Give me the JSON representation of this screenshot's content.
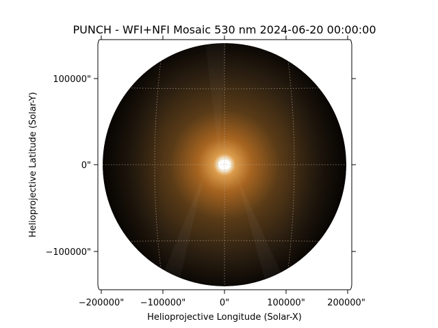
{
  "title": "PUNCH - WFI+NFI Mosaic 530 nm 2024-06-20 00:00:00",
  "xlabel": "Helioprojective Longitude (Solar-X)",
  "ylabel": "Helioprojective Latitude (Solar-Y)",
  "x_ticks": [
    "−200000\"",
    "−100000\"",
    "0\"",
    "100000\"",
    "200000\""
  ],
  "y_ticks": [
    "100000\"",
    "0\"",
    "−100000\""
  ],
  "colors": {
    "background": "#ffffff",
    "sun_core": "#ffffff",
    "corona_inner": "#d4882a",
    "corona_mid": "#5a3a14",
    "corona_outer": "#120c06",
    "grid": "#b9a690"
  }
}
